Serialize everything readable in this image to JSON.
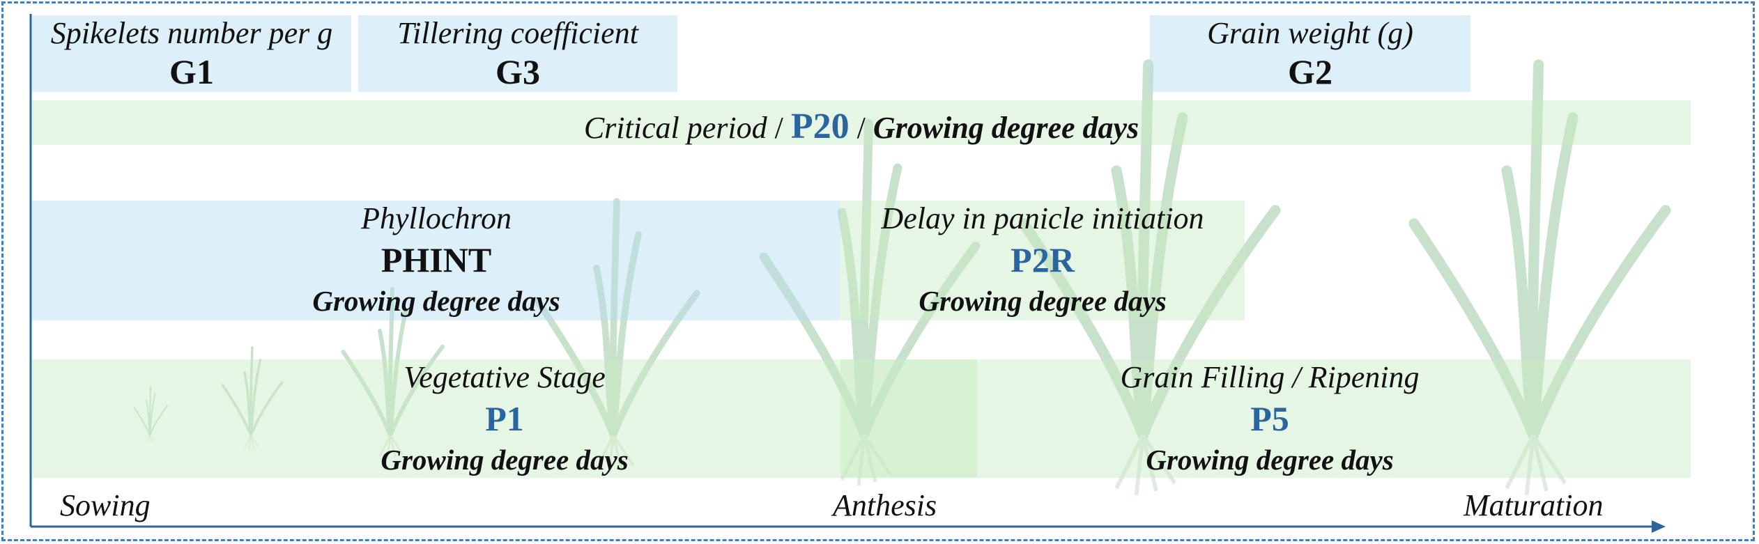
{
  "colors": {
    "frame_border": "#3f7fc0",
    "blue_box": "#d3ebf5",
    "green_box": "#dff2da",
    "param_blue": "#2a65a0",
    "axis": "#2a65a0",
    "plant": "#b9d8bd"
  },
  "params": {
    "g1": {
      "label": "Spikelets number per g",
      "code": "G1"
    },
    "g3": {
      "label": "Tillering coefficient",
      "code": "G3"
    },
    "g2": {
      "label": "Grain weight (g)",
      "code": "G2"
    }
  },
  "critical": {
    "label": "Critical period",
    "sep1": " / ",
    "code": "P20",
    "sep2": " / ",
    "unit": "Growing degree days"
  },
  "phyllochron": {
    "label": "Phyllochron",
    "code": "PHINT",
    "unit": "Growing degree days"
  },
  "panicle": {
    "label": "Delay in panicle initiation",
    "code": "P2R",
    "unit": "Growing degree days"
  },
  "vegetative": {
    "label": "Vegetative Stage",
    "code": "P1",
    "unit": "Growing degree days"
  },
  "grainfill": {
    "label": "Grain Filling / Ripening",
    "code": "P5",
    "unit": "Growing degree days"
  },
  "timeline": {
    "sowing": "Sowing",
    "anthesis": "Anthesis",
    "maturation": "Maturation"
  },
  "decoration": {
    "plant_icon": "rice-plant-icon"
  }
}
